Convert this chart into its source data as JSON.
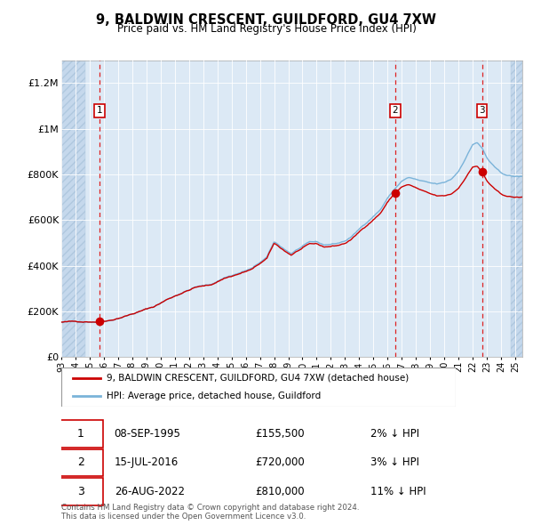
{
  "title": "9, BALDWIN CRESCENT, GUILDFORD, GU4 7XW",
  "subtitle": "Price paid vs. HM Land Registry's House Price Index (HPI)",
  "ylim": [
    0,
    1300000
  ],
  "yticks": [
    0,
    200000,
    400000,
    600000,
    800000,
    1000000,
    1200000
  ],
  "ytick_labels": [
    "£0",
    "£200K",
    "£400K",
    "£600K",
    "£800K",
    "£1M",
    "£1.2M"
  ],
  "hpi_color": "#7ab3d9",
  "price_color": "#cc0000",
  "bg_color": "#dce9f5",
  "hatch_bg_color": "#c5d8ec",
  "grid_color": "#ffffff",
  "sale_dates_num": [
    1995.69,
    2016.54,
    2022.66
  ],
  "sale_prices": [
    155500,
    720000,
    810000
  ],
  "sale_labels": [
    "1",
    "2",
    "3"
  ],
  "legend_line1": "9, BALDWIN CRESCENT, GUILDFORD, GU4 7XW (detached house)",
  "legend_line2": "HPI: Average price, detached house, Guildford",
  "table_rows": [
    [
      "1",
      "08-SEP-1995",
      "£155,500",
      "2% ↓ HPI"
    ],
    [
      "2",
      "15-JUL-2016",
      "£720,000",
      "3% ↓ HPI"
    ],
    [
      "3",
      "26-AUG-2022",
      "£810,000",
      "11% ↓ HPI"
    ]
  ],
  "footnote": "Contains HM Land Registry data © Crown copyright and database right 2024.\nThis data is licensed under the Open Government Licence v3.0.",
  "xmin": 1993.0,
  "xmax": 2025.5,
  "hatch_left_end": 1994.7,
  "hatch_right_start": 2024.7
}
